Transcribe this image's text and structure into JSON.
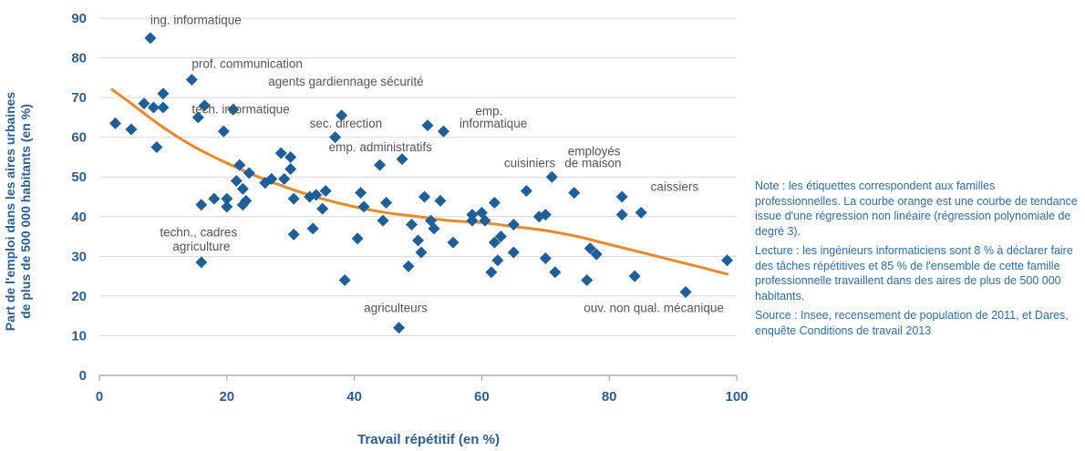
{
  "chart_data": {
    "type": "scatter",
    "xlabel": "Travail répétitif (en %)",
    "ylabel_lines": [
      "Part de l'emploi dans les aires urbaines",
      "de plus de 500 000 habitants (en %)"
    ],
    "xlim": [
      0,
      100
    ],
    "ylim": [
      0,
      90
    ],
    "x_ticks": [
      "0",
      "20",
      "40",
      "60",
      "80",
      "100"
    ],
    "y_ticks": [
      "0",
      "10",
      "20",
      "30",
      "40",
      "50",
      "60",
      "70",
      "80",
      "90"
    ],
    "grid": "horizontal",
    "marker_color": "#1f5f99",
    "trend_color": "#e8892c",
    "points": [
      [
        2.5,
        63.5
      ],
      [
        5,
        62
      ],
      [
        7,
        68.5
      ],
      [
        8,
        85
      ],
      [
        8.5,
        67.5
      ],
      [
        9,
        57.5
      ],
      [
        10,
        71
      ],
      [
        10,
        67.5
      ],
      [
        14.5,
        74.5
      ],
      [
        15.5,
        65
      ],
      [
        16,
        43
      ],
      [
        16,
        28.5
      ],
      [
        16.5,
        68
      ],
      [
        18,
        44.5
      ],
      [
        19.5,
        61.5
      ],
      [
        20,
        44.5
      ],
      [
        20,
        42.5
      ],
      [
        21,
        67
      ],
      [
        21.5,
        49
      ],
      [
        22,
        53
      ],
      [
        22.5,
        47
      ],
      [
        22.5,
        43
      ],
      [
        23,
        44
      ],
      [
        23.5,
        51
      ],
      [
        26,
        48.5
      ],
      [
        27,
        49.5
      ],
      [
        28.5,
        56
      ],
      [
        29,
        49.5
      ],
      [
        30,
        55
      ],
      [
        30,
        52
      ],
      [
        30.5,
        44.5
      ],
      [
        30.5,
        35.5
      ],
      [
        33,
        45
      ],
      [
        33.5,
        37
      ],
      [
        34,
        45.5
      ],
      [
        35,
        42
      ],
      [
        35.5,
        46.5
      ],
      [
        37,
        60
      ],
      [
        38,
        65.5
      ],
      [
        38.5,
        24
      ],
      [
        40.5,
        34.5
      ],
      [
        41,
        46
      ],
      [
        41.5,
        42.5
      ],
      [
        44,
        53
      ],
      [
        44.5,
        39
      ],
      [
        45,
        43.5
      ],
      [
        47,
        12
      ],
      [
        47.5,
        54.5
      ],
      [
        48.5,
        27.5
      ],
      [
        49,
        38
      ],
      [
        50,
        34
      ],
      [
        50.5,
        31
      ],
      [
        51,
        45
      ],
      [
        51.5,
        63
      ],
      [
        52,
        39
      ],
      [
        52.5,
        37
      ],
      [
        53.5,
        44
      ],
      [
        54,
        61.5
      ],
      [
        55.5,
        33.5
      ],
      [
        58.5,
        39
      ],
      [
        58.5,
        40.5
      ],
      [
        60,
        41
      ],
      [
        60.5,
        39
      ],
      [
        61.5,
        26
      ],
      [
        62,
        33.5
      ],
      [
        62,
        43.5
      ],
      [
        62.5,
        29
      ],
      [
        63,
        35
      ],
      [
        65,
        31
      ],
      [
        65,
        38
      ],
      [
        67,
        46.5
      ],
      [
        69,
        40
      ],
      [
        70,
        29.5
      ],
      [
        70,
        40.5
      ],
      [
        71,
        50
      ],
      [
        71.5,
        26
      ],
      [
        74.5,
        46
      ],
      [
        76.5,
        24
      ],
      [
        77,
        32
      ],
      [
        78,
        30.5
      ],
      [
        82,
        45
      ],
      [
        82,
        40.5
      ],
      [
        84,
        25
      ],
      [
        85,
        41
      ],
      [
        92,
        21
      ],
      [
        98.5,
        29
      ]
    ],
    "trend_points": [
      [
        2,
        72
      ],
      [
        5,
        68.5
      ],
      [
        10,
        62.5
      ],
      [
        15,
        57.5
      ],
      [
        20,
        53.5
      ],
      [
        25,
        50
      ],
      [
        30,
        47
      ],
      [
        35,
        44.5
      ],
      [
        40,
        42.5
      ],
      [
        45,
        41
      ],
      [
        50,
        40
      ],
      [
        55,
        39
      ],
      [
        60,
        38.5
      ],
      [
        65,
        37.5
      ],
      [
        70,
        36.5
      ],
      [
        75,
        35
      ],
      [
        80,
        33
      ],
      [
        85,
        31
      ],
      [
        90,
        29
      ],
      [
        95,
        27
      ],
      [
        98.5,
        25.5
      ]
    ],
    "annotations": [
      {
        "text": "ing. informatique",
        "x": 8,
        "y": 88.5
      },
      {
        "text": "prof. communication",
        "x": 14.5,
        "y": 77.5
      },
      {
        "text": "agents gardiennage sécurité",
        "x": 26.5,
        "y": 73
      },
      {
        "text": "tech. informatique",
        "x": 14.5,
        "y": 66
      },
      {
        "text": "sec. direction",
        "x": 33,
        "y": 62.5
      },
      {
        "text": "emp.",
        "x": 59,
        "y": 65.5
      },
      {
        "text": "informatique",
        "x": 56.5,
        "y": 62.5
      },
      {
        "text": "emp. administratifs",
        "x": 36,
        "y": 56.5
      },
      {
        "text": "employés",
        "x": 73.5,
        "y": 55.5
      },
      {
        "text": "cuisiniers",
        "x": 63.5,
        "y": 52.5
      },
      {
        "text": "de maison",
        "x": 73,
        "y": 52.5
      },
      {
        "text": "caissiers",
        "x": 86.5,
        "y": 46.5
      },
      {
        "text": "techn., cadres",
        "x": 9.5,
        "y": 35
      },
      {
        "text": "agriculture",
        "x": 11.5,
        "y": 31.5
      },
      {
        "text": "agriculteurs",
        "x": 41.5,
        "y": 16
      },
      {
        "text": "ouv. non qual. mécanique",
        "x": 76,
        "y": 16
      }
    ]
  },
  "note": {
    "p1": "Note : les étiquettes correspondent aux familles professionnelles. La courbe orange est une courbe de tendance issue d'une régression non linéaire (régression polynomiale de degré 3).",
    "p2": "Lecture : les ingénieurs informaticiens sont 8 % à déclarer faire des tâches répétitives et 85 % de l'ensemble de cette famille professionnelle travaillent dans des aires de plus de 500 000 habitants.",
    "p3": "Source : Insee, recensement de population de 2011, et Dares, enquête Conditions de travail 2013"
  }
}
